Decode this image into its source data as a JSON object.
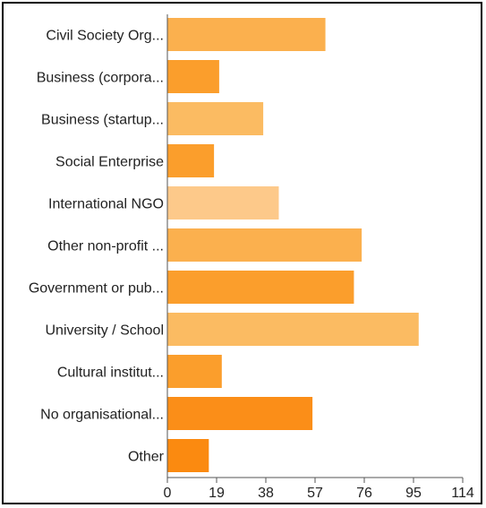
{
  "chart_data": {
    "type": "bar",
    "orientation": "horizontal",
    "categories": [
      "Civil Society Org...",
      "Business (corpora...",
      "Business (startup...",
      "Social Enterprise",
      "International NGO",
      "Other non-profit ...",
      "Government or pub...",
      "University / School",
      "Cultural institut...",
      "No organisational...",
      "Other"
    ],
    "values": [
      61,
      20,
      37,
      18,
      43,
      75,
      72,
      97,
      21,
      56,
      16
    ],
    "colors": [
      "#fbb04e",
      "#fb9e2c",
      "#fbbb62",
      "#fb9e2c",
      "#fdc98a",
      "#fbb04e",
      "#fb9e2c",
      "#fbbb62",
      "#fb9e2c",
      "#fb8e18",
      "#fb8a10"
    ],
    "xticks": [
      0,
      19,
      38,
      57,
      76,
      95,
      114
    ],
    "xlim": [
      0,
      114
    ],
    "title": "",
    "xlabel": "",
    "ylabel": "",
    "grid": false,
    "legend": false
  }
}
